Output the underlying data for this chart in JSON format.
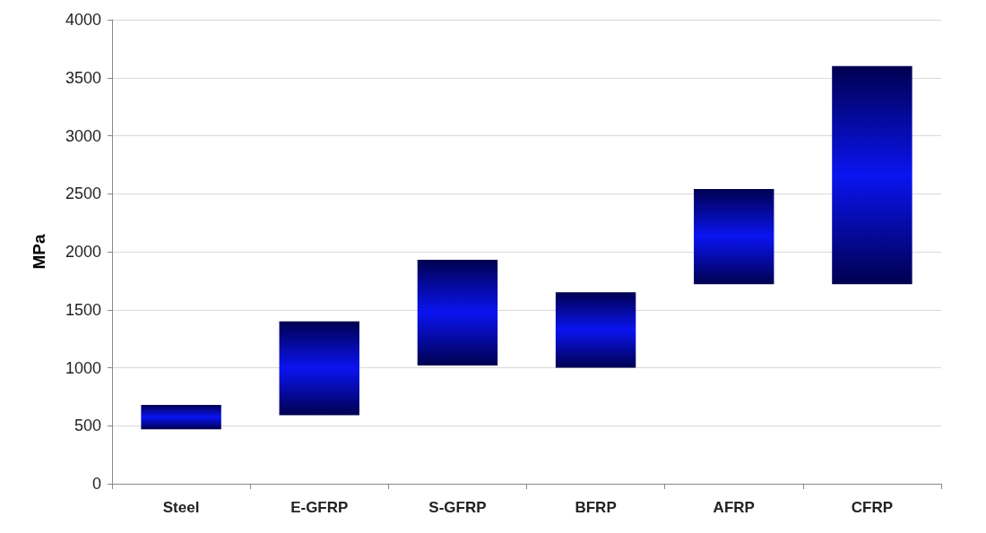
{
  "chart_data": {
    "type": "bar",
    "ylabel": "MPa",
    "categories": [
      "Steel",
      "E-GFRP",
      "S-GFRP",
      "BFRP",
      "AFRP",
      "CFRP"
    ],
    "base": [
      470,
      590,
      1020,
      1000,
      1720,
      1720
    ],
    "values": [
      210,
      810,
      910,
      650,
      820,
      1880
    ],
    "color": "#0a14f0",
    "ylim": [
      0,
      4000
    ],
    "yticks": [
      0,
      500,
      1000,
      1500,
      2000,
      2500,
      3000,
      3500,
      4000
    ],
    "grid": "y"
  }
}
